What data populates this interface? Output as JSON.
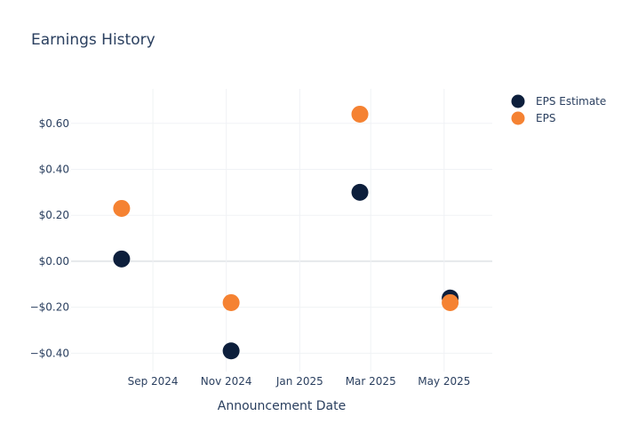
{
  "chart_data": {
    "type": "scatter",
    "title": "Earnings History",
    "xlabel": "Announcement Date",
    "ylabel": "",
    "x_tick_labels": [
      {
        "date": "2024-09-01",
        "label": "Sep 2024"
      },
      {
        "date": "2024-11-01",
        "label": "Nov 2024"
      },
      {
        "date": "2025-01-01",
        "label": "Jan 2025"
      },
      {
        "date": "2025-03-01",
        "label": "Mar 2025"
      },
      {
        "date": "2025-05-01",
        "label": "May 2025"
      }
    ],
    "xlim": [
      "2024-06-25",
      "2025-06-10"
    ],
    "y_tick_labels": [
      {
        "value": 0.6,
        "label": "$0.60"
      },
      {
        "value": 0.4,
        "label": "$0.40"
      },
      {
        "value": 0.2,
        "label": "$0.20"
      },
      {
        "value": 0.0,
        "label": "$0.00"
      },
      {
        "value": -0.2,
        "label": "−$0.20"
      },
      {
        "value": -0.4,
        "label": "−$0.40"
      }
    ],
    "ylim": [
      -0.48,
      0.75
    ],
    "grid": true,
    "legend_position": "top-right",
    "series": [
      {
        "name": "EPS Estimate",
        "color": "#0d1f3c",
        "points": [
          {
            "x": "2024-08-06",
            "y": 0.01
          },
          {
            "x": "2024-11-05",
            "y": -0.39
          },
          {
            "x": "2025-02-20",
            "y": 0.3
          },
          {
            "x": "2025-05-06",
            "y": -0.16
          }
        ]
      },
      {
        "name": "EPS",
        "color": "#f58232",
        "points": [
          {
            "x": "2024-08-06",
            "y": 0.23
          },
          {
            "x": "2024-11-05",
            "y": -0.18
          },
          {
            "x": "2025-02-20",
            "y": 0.64
          },
          {
            "x": "2025-05-06",
            "y": -0.18
          }
        ]
      }
    ]
  }
}
